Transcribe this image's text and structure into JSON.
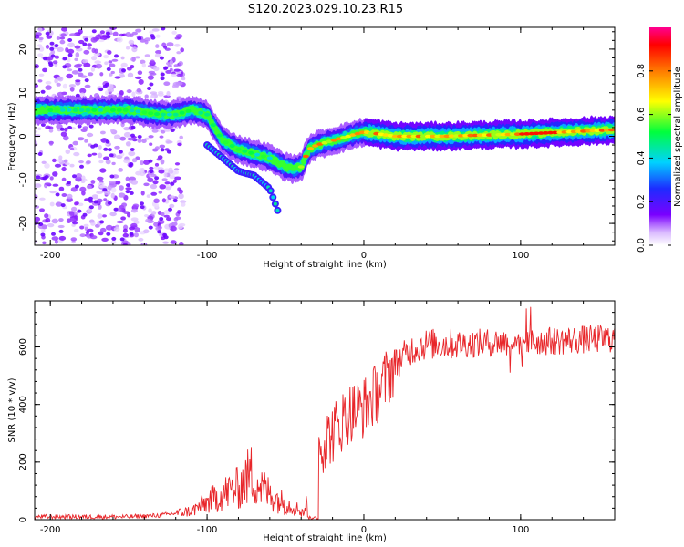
{
  "title": "S120.2023.029.10.23.R15",
  "chart_data": [
    {
      "type": "heatmap",
      "xlabel": "Height of straight line (km)",
      "ylabel": "Frequency (Hz)",
      "xlim": [
        -210,
        160
      ],
      "ylim": [
        -25,
        25
      ],
      "xticks": [
        -200,
        -100,
        0,
        100
      ],
      "yticks": [
        -20,
        -10,
        0,
        10,
        20
      ],
      "colorbar": {
        "label": "Normalized spectral amplitude",
        "range": [
          0,
          1
        ],
        "ticks": [
          "0.0",
          "0.2",
          "0.4",
          "0.6",
          "0.8"
        ]
      },
      "ridge": {
        "x": [
          -210,
          -180,
          -150,
          -130,
          -120,
          -110,
          -100,
          -90,
          -80,
          -70,
          -60,
          -50,
          -45,
          -40,
          -35,
          -30,
          -20,
          -10,
          0,
          20,
          50,
          100,
          130,
          160
        ],
        "y": [
          6,
          6,
          6,
          5,
          5,
          6,
          5,
          -1,
          -3,
          -4,
          -5,
          -7,
          -7.5,
          -7,
          -3,
          -2,
          -1,
          0,
          1,
          0,
          0,
          0.5,
          1,
          1.5
        ]
      },
      "branch": {
        "x": [
          -100,
          -90,
          -80,
          -70,
          -60,
          -55
        ],
        "y": [
          -2,
          -5,
          -8,
          -9,
          -12,
          -17
        ]
      },
      "grid": false
    },
    {
      "type": "line",
      "xlabel": "Height of straight line (km)",
      "ylabel": "SNR (10 * v/v)",
      "xlim": [
        -210,
        160
      ],
      "ylim": [
        0,
        760
      ],
      "xticks": [
        -200,
        -100,
        0,
        100
      ],
      "yticks": [
        0,
        200,
        400,
        600
      ],
      "color": "#e8262a",
      "series": [
        {
          "x": [
            -210,
            -180,
            -150,
            -130,
            -110,
            -100,
            -90,
            -80,
            -72,
            -65,
            -55,
            -45,
            -38,
            -32,
            -28,
            -20,
            -10,
            0,
            10,
            20,
            30,
            40,
            60,
            80,
            100,
            120,
            140,
            160
          ],
          "y": [
            10,
            10,
            10,
            15,
            30,
            60,
            90,
            110,
            160,
            110,
            70,
            45,
            25,
            200,
            260,
            300,
            370,
            390,
            450,
            540,
            590,
            610,
            610,
            615,
            620,
            620,
            625,
            630
          ]
        }
      ],
      "grid": false
    }
  ]
}
